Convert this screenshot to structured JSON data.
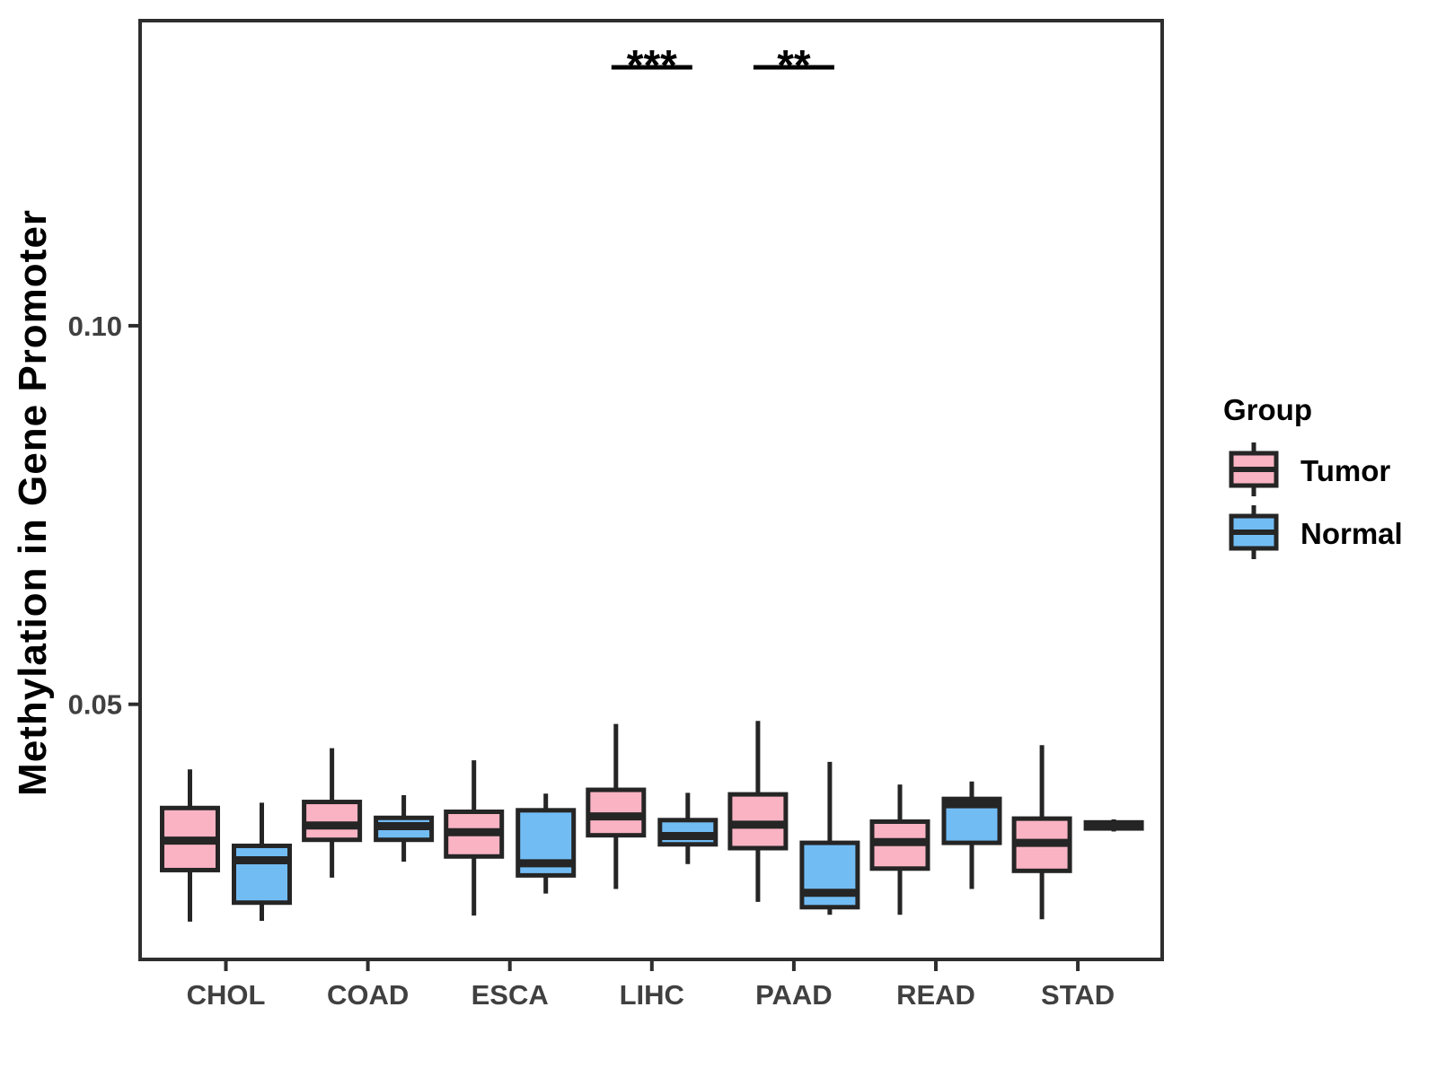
{
  "legend": {
    "title": "Group",
    "items": [
      {
        "label": "Tumor",
        "color": "#FAB3C3"
      },
      {
        "label": "Normal",
        "color": "#72BCF4"
      }
    ]
  },
  "chart_data": {
    "type": "boxplot",
    "title": "",
    "xlabel": "",
    "ylabel": "Methylation in Gene Promoter",
    "categories": [
      "CHOL",
      "COAD",
      "ESCA",
      "LIHC",
      "PAAD",
      "READ",
      "STAD"
    ],
    "groups": [
      "Tumor",
      "Normal"
    ],
    "yticks": [
      0.05,
      0.1
    ],
    "ytick_labels": [
      "0.05",
      "0.10"
    ],
    "ylim": [
      0.0163,
      0.1403
    ],
    "grid": false,
    "legend_position": "right",
    "colors": {
      "Tumor": "#FAB3C3",
      "Normal": "#72BCF4",
      "stroke": "#252525",
      "panel_border": "#2E2E2E"
    },
    "series": [
      {
        "name": "Tumor",
        "boxes": [
          {
            "category": "CHOL",
            "min": 0.0213,
            "q1": 0.0281,
            "median": 0.032,
            "q3": 0.0363,
            "max": 0.0414
          },
          {
            "category": "COAD",
            "min": 0.0271,
            "q1": 0.0321,
            "median": 0.034,
            "q3": 0.0371,
            "max": 0.0442
          },
          {
            "category": "ESCA",
            "min": 0.0221,
            "q1": 0.0299,
            "median": 0.0331,
            "q3": 0.0358,
            "max": 0.0426
          },
          {
            "category": "LIHC",
            "min": 0.0256,
            "q1": 0.0327,
            "median": 0.0352,
            "q3": 0.0387,
            "max": 0.0474
          },
          {
            "category": "PAAD",
            "min": 0.0239,
            "q1": 0.031,
            "median": 0.0341,
            "q3": 0.0381,
            "max": 0.0478
          },
          {
            "category": "READ",
            "min": 0.0222,
            "q1": 0.0283,
            "median": 0.0318,
            "q3": 0.0345,
            "max": 0.0394
          },
          {
            "category": "STAD",
            "min": 0.0216,
            "q1": 0.028,
            "median": 0.0317,
            "q3": 0.0349,
            "max": 0.0446
          }
        ]
      },
      {
        "name": "Normal",
        "boxes": [
          {
            "category": "CHOL",
            "min": 0.0214,
            "q1": 0.0238,
            "median": 0.0294,
            "q3": 0.0313,
            "max": 0.037
          },
          {
            "category": "COAD",
            "min": 0.0292,
            "q1": 0.0321,
            "median": 0.0339,
            "q3": 0.035,
            "max": 0.038
          },
          {
            "category": "ESCA",
            "min": 0.025,
            "q1": 0.0274,
            "median": 0.029,
            "q3": 0.036,
            "max": 0.0382
          },
          {
            "category": "LIHC",
            "min": 0.0289,
            "q1": 0.0315,
            "median": 0.0326,
            "q3": 0.0347,
            "max": 0.0383
          },
          {
            "category": "PAAD",
            "min": 0.0222,
            "q1": 0.0232,
            "median": 0.0251,
            "q3": 0.0317,
            "max": 0.0424
          },
          {
            "category": "READ",
            "min": 0.0256,
            "q1": 0.0317,
            "median": 0.0368,
            "q3": 0.0375,
            "max": 0.0398
          },
          {
            "category": "STAD",
            "min": 0.0332,
            "q1": 0.0336,
            "median": 0.034,
            "q3": 0.0344,
            "max": 0.0348
          }
        ]
      }
    ],
    "significance": [
      {
        "category": "LIHC",
        "label": "***"
      },
      {
        "category": "PAAD",
        "label": "**"
      }
    ]
  }
}
